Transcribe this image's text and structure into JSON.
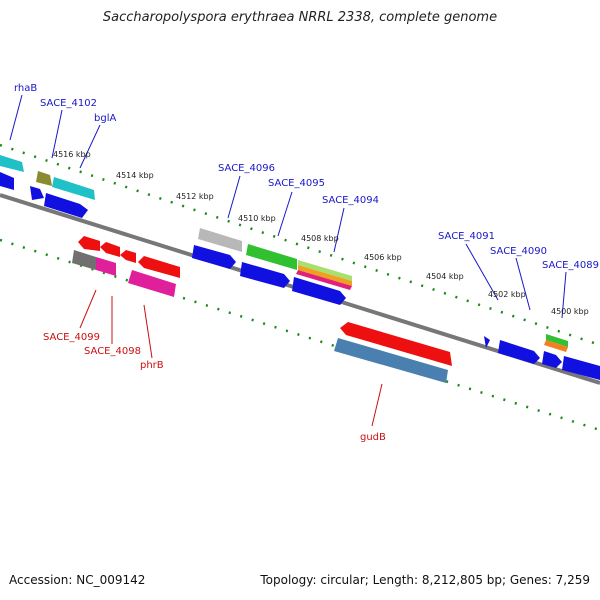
{
  "title": "Saccharopolyspora erythraea NRRL 2338, complete genome",
  "footer": {
    "accession": "Accession: NC_009142",
    "summary": "Topology: circular; Length: 8,212,805 bp; Genes: 7,259"
  },
  "scale_labels": [
    "4516 kbp",
    "4514 kbp",
    "4512 kbp",
    "4510 kbp",
    "4508 kbp",
    "4506 kbp",
    "4504 kbp",
    "4502 kbp",
    "4500 kbp"
  ],
  "gene_labels_top": [
    "rhaB",
    "SACE_4102",
    "bglA",
    "SACE_4096",
    "SACE_4095",
    "SACE_4094",
    "SACE_4091",
    "SACE_4090",
    "SACE_4089"
  ],
  "gene_labels_bottom": [
    "SACE_4099",
    "SACE_4098",
    "phrB",
    "gudB"
  ],
  "colors": {
    "backbone": "#707070",
    "forward_cds": "#1010e0",
    "tick_dots": "#1a8a1a",
    "label_forward": "#1818c8",
    "label_reverse": "#cc1010"
  }
}
